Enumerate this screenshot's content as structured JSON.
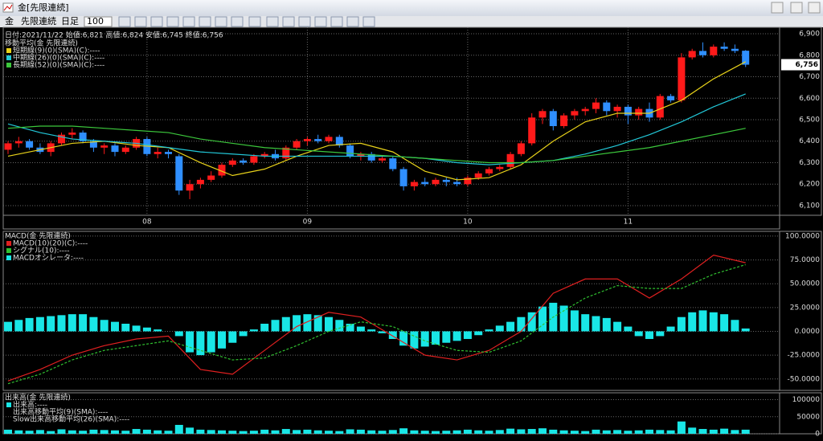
{
  "window": {
    "title": "金[先限連続]"
  },
  "toolbar": {
    "symbol": "金",
    "contract": "先限連続",
    "period": "日足",
    "count": 100
  },
  "price_chart": {
    "type": "candlestick",
    "info": "日付:2021/11/22 始値:6,821 高値:6,824 安値:6,745 終値:6,756",
    "legend_title": "移動平均(金 先限連続)",
    "up_color": "#ff1a1a",
    "down_color": "#2f8fff",
    "grid": true,
    "ylim": [
      6055,
      6930
    ],
    "yticks": [
      {
        "value": 6100,
        "label": "6,100"
      },
      {
        "value": 6200,
        "label": "6,200"
      },
      {
        "value": 6300,
        "label": "6,300"
      },
      {
        "value": 6400,
        "label": "6,400"
      },
      {
        "value": 6500,
        "label": "6,500"
      },
      {
        "value": 6600,
        "label": "6,600"
      },
      {
        "value": 6700,
        "label": "6,700"
      },
      {
        "value": 6800,
        "label": "6,800"
      },
      {
        "value": 6900,
        "label": "6,900"
      }
    ],
    "last_price": {
      "value": 6756,
      "label": "6,756"
    },
    "x_labels": [
      {
        "value": 13,
        "label": "08"
      },
      {
        "value": 28,
        "label": "09"
      },
      {
        "value": 43,
        "label": "10"
      },
      {
        "value": 58,
        "label": "11"
      }
    ],
    "candles": [
      [
        6360,
        6400,
        6340,
        6390
      ],
      [
        6390,
        6420,
        6370,
        6400
      ],
      [
        6400,
        6410,
        6360,
        6370
      ],
      [
        6370,
        6390,
        6340,
        6350
      ],
      [
        6350,
        6400,
        6330,
        6390
      ],
      [
        6390,
        6440,
        6380,
        6430
      ],
      [
        6430,
        6460,
        6410,
        6440
      ],
      [
        6440,
        6450,
        6390,
        6400
      ],
      [
        6400,
        6410,
        6350,
        6370
      ],
      [
        6370,
        6390,
        6340,
        6380
      ],
      [
        6380,
        6390,
        6330,
        6350
      ],
      [
        6350,
        6380,
        6340,
        6370
      ],
      [
        6370,
        6420,
        6360,
        6410
      ],
      [
        6410,
        6420,
        6330,
        6340
      ],
      [
        6340,
        6370,
        6320,
        6350
      ],
      [
        6350,
        6360,
        6320,
        6340
      ],
      [
        6330,
        6340,
        6150,
        6170
      ],
      [
        6170,
        6220,
        6130,
        6200
      ],
      [
        6200,
        6230,
        6180,
        6220
      ],
      [
        6220,
        6260,
        6210,
        6240
      ],
      [
        6240,
        6300,
        6230,
        6290
      ],
      [
        6290,
        6320,
        6280,
        6310
      ],
      [
        6310,
        6320,
        6290,
        6300
      ],
      [
        6300,
        6340,
        6290,
        6330
      ],
      [
        6330,
        6350,
        6320,
        6340
      ],
      [
        6340,
        6360,
        6310,
        6320
      ],
      [
        6320,
        6380,
        6310,
        6370
      ],
      [
        6370,
        6410,
        6360,
        6400
      ],
      [
        6400,
        6420,
        6380,
        6410
      ],
      [
        6410,
        6430,
        6390,
        6400
      ],
      [
        6400,
        6430,
        6390,
        6420
      ],
      [
        6420,
        6430,
        6370,
        6380
      ],
      [
        6380,
        6390,
        6320,
        6330
      ],
      [
        6330,
        6350,
        6310,
        6340
      ],
      [
        6340,
        6350,
        6300,
        6310
      ],
      [
        6310,
        6330,
        6300,
        6320
      ],
      [
        6320,
        6330,
        6260,
        6270
      ],
      [
        6270,
        6280,
        6170,
        6190
      ],
      [
        6190,
        6220,
        6170,
        6210
      ],
      [
        6210,
        6230,
        6190,
        6200
      ],
      [
        6200,
        6230,
        6190,
        6220
      ],
      [
        6220,
        6230,
        6190,
        6210
      ],
      [
        6210,
        6230,
        6190,
        6200
      ],
      [
        6200,
        6240,
        6190,
        6230
      ],
      [
        6230,
        6260,
        6220,
        6250
      ],
      [
        6250,
        6280,
        6240,
        6270
      ],
      [
        6270,
        6290,
        6260,
        6280
      ],
      [
        6280,
        6350,
        6270,
        6340
      ],
      [
        6340,
        6400,
        6330,
        6390
      ],
      [
        6390,
        6530,
        6380,
        6510
      ],
      [
        6510,
        6550,
        6480,
        6540
      ],
      [
        6540,
        6550,
        6450,
        6470
      ],
      [
        6470,
        6530,
        6460,
        6520
      ],
      [
        6520,
        6550,
        6500,
        6540
      ],
      [
        6540,
        6560,
        6520,
        6550
      ],
      [
        6550,
        6600,
        6530,
        6580
      ],
      [
        6580,
        6590,
        6520,
        6540
      ],
      [
        6540,
        6570,
        6510,
        6560
      ],
      [
        6560,
        6570,
        6480,
        6520
      ],
      [
        6520,
        6560,
        6500,
        6550
      ],
      [
        6550,
        6580,
        6490,
        6510
      ],
      [
        6510,
        6620,
        6500,
        6610
      ],
      [
        6610,
        6620,
        6580,
        6590
      ],
      [
        6590,
        6810,
        6580,
        6790
      ],
      [
        6790,
        6830,
        6780,
        6820
      ],
      [
        6820,
        6860,
        6790,
        6800
      ],
      [
        6800,
        6850,
        6790,
        6840
      ],
      [
        6840,
        6860,
        6820,
        6830
      ],
      [
        6830,
        6850,
        6810,
        6820
      ],
      [
        6821,
        6824,
        6745,
        6756
      ]
    ],
    "ma_x": [
      0,
      3,
      6,
      9,
      12,
      15,
      18,
      21,
      24,
      27,
      30,
      33,
      36,
      39,
      42,
      45,
      48,
      51,
      54,
      57,
      60,
      63,
      66,
      69
    ],
    "series": [
      {
        "name": "短期線(9)(0)(SMA)(C):----",
        "color": "#e8d21a",
        "values": [
          6330,
          6360,
          6390,
          6400,
          6380,
          6370,
          6300,
          6240,
          6270,
          6330,
          6380,
          6390,
          6350,
          6260,
          6220,
          6230,
          6290,
          6400,
          6490,
          6530,
          6530,
          6590,
          6690,
          6770
        ]
      },
      {
        "name": "中期線(26)(0)(SMA)(C):----",
        "color": "#22c8d8",
        "values": [
          6480,
          6440,
          6410,
          6400,
          6390,
          6370,
          6350,
          6340,
          6330,
          6330,
          6330,
          6330,
          6330,
          6320,
          6300,
          6290,
          6300,
          6310,
          6340,
          6380,
          6430,
          6490,
          6560,
          6620
        ]
      },
      {
        "name": "長期線(52)(0)(SMA)(C):----",
        "color": "#3cc83c",
        "values": [
          6460,
          6470,
          6470,
          6460,
          6450,
          6440,
          6410,
          6390,
          6370,
          6360,
          6350,
          6340,
          6330,
          6320,
          6310,
          6300,
          6300,
          6310,
          6330,
          6350,
          6370,
          6400,
          6430,
          6460
        ]
      }
    ]
  },
  "macd_chart": {
    "type": "macd",
    "legend_title": "MACD(金 先限連続)",
    "ylim": [
      -62,
      105
    ],
    "yticks": [
      {
        "value": -50,
        "label": "-50.0000"
      },
      {
        "value": -25,
        "label": "-25.0000"
      },
      {
        "value": 0,
        "label": "0.0000"
      },
      {
        "value": 25,
        "label": "25.0000"
      },
      {
        "value": 50,
        "label": "50.0000"
      },
      {
        "value": 75,
        "label": "75.0000"
      },
      {
        "value": 100,
        "label": "100.0000"
      }
    ],
    "line_x": [
      0,
      3,
      6,
      9,
      12,
      15,
      18,
      21,
      24,
      27,
      30,
      33,
      36,
      39,
      42,
      45,
      48,
      51,
      54,
      57,
      60,
      63,
      66,
      69
    ],
    "series": [
      {
        "name": "MACD(10)(20)(C):----",
        "color": "#e02020",
        "dashed": false,
        "values": [
          -52,
          -40,
          -25,
          -15,
          -8,
          -5,
          -40,
          -45,
          -20,
          5,
          20,
          15,
          -5,
          -25,
          -30,
          -20,
          0,
          40,
          55,
          55,
          35,
          55,
          80,
          72
        ]
      },
      {
        "name": "シグナル(10):----",
        "color": "#30c030",
        "dashed": true,
        "values": [
          -55,
          -45,
          -30,
          -20,
          -15,
          -10,
          -20,
          -30,
          -28,
          -15,
          0,
          10,
          5,
          -10,
          -20,
          -22,
          -10,
          15,
          35,
          48,
          45,
          45,
          60,
          70
        ]
      }
    ],
    "histogram": {
      "name": "MACDオシレータ:----",
      "color": "#19e6e6",
      "values": [
        10,
        12,
        14,
        15,
        16,
        17,
        18,
        18,
        15,
        12,
        10,
        8,
        6,
        4,
        2,
        0,
        -5,
        -22,
        -25,
        -22,
        -18,
        -12,
        -5,
        2,
        8,
        12,
        15,
        17,
        18,
        17,
        15,
        12,
        8,
        5,
        2,
        -2,
        -8,
        -15,
        -18,
        -16,
        -14,
        -12,
        -10,
        -8,
        -4,
        2,
        6,
        10,
        15,
        20,
        26,
        30,
        27,
        22,
        18,
        16,
        14,
        10,
        5,
        -5,
        -8,
        -5,
        5,
        15,
        20,
        22,
        20,
        18,
        12,
        3
      ]
    }
  },
  "volume_chart": {
    "type": "bar",
    "legend_title": "出来高(金 先限連続)",
    "ylim": [
      0,
      120000
    ],
    "yticks": [
      0,
      50000,
      100000
    ],
    "series": [
      {
        "name": "出来高:----",
        "color": "#19e6e6",
        "values": [
          12000,
          10000,
          9000,
          11000,
          8000,
          13000,
          10000,
          9000,
          12000,
          11000,
          10000,
          9000,
          14000,
          12000,
          10000,
          9000,
          26000,
          18000,
          12000,
          11000,
          10000,
          9000,
          8000,
          9000,
          12000,
          10000,
          14000,
          11000,
          12000,
          10000,
          9000,
          8000,
          13000,
          12000,
          10000,
          9000,
          11000,
          16000,
          10000,
          9000,
          8000,
          9000,
          10000,
          12000,
          10000,
          9000,
          11000,
          15000,
          13000,
          14000,
          16000,
          12000,
          10000,
          9000,
          8000,
          12000,
          10000,
          11000,
          9000,
          10000,
          12000,
          11000,
          10000,
          36000,
          18000,
          14000,
          12000,
          15000,
          11000,
          12000
        ]
      }
    ],
    "other_legend": [
      "出来高移動平均(9)(SMA):----",
      "Slow出来高移動平均(26)(SMA):----"
    ]
  }
}
